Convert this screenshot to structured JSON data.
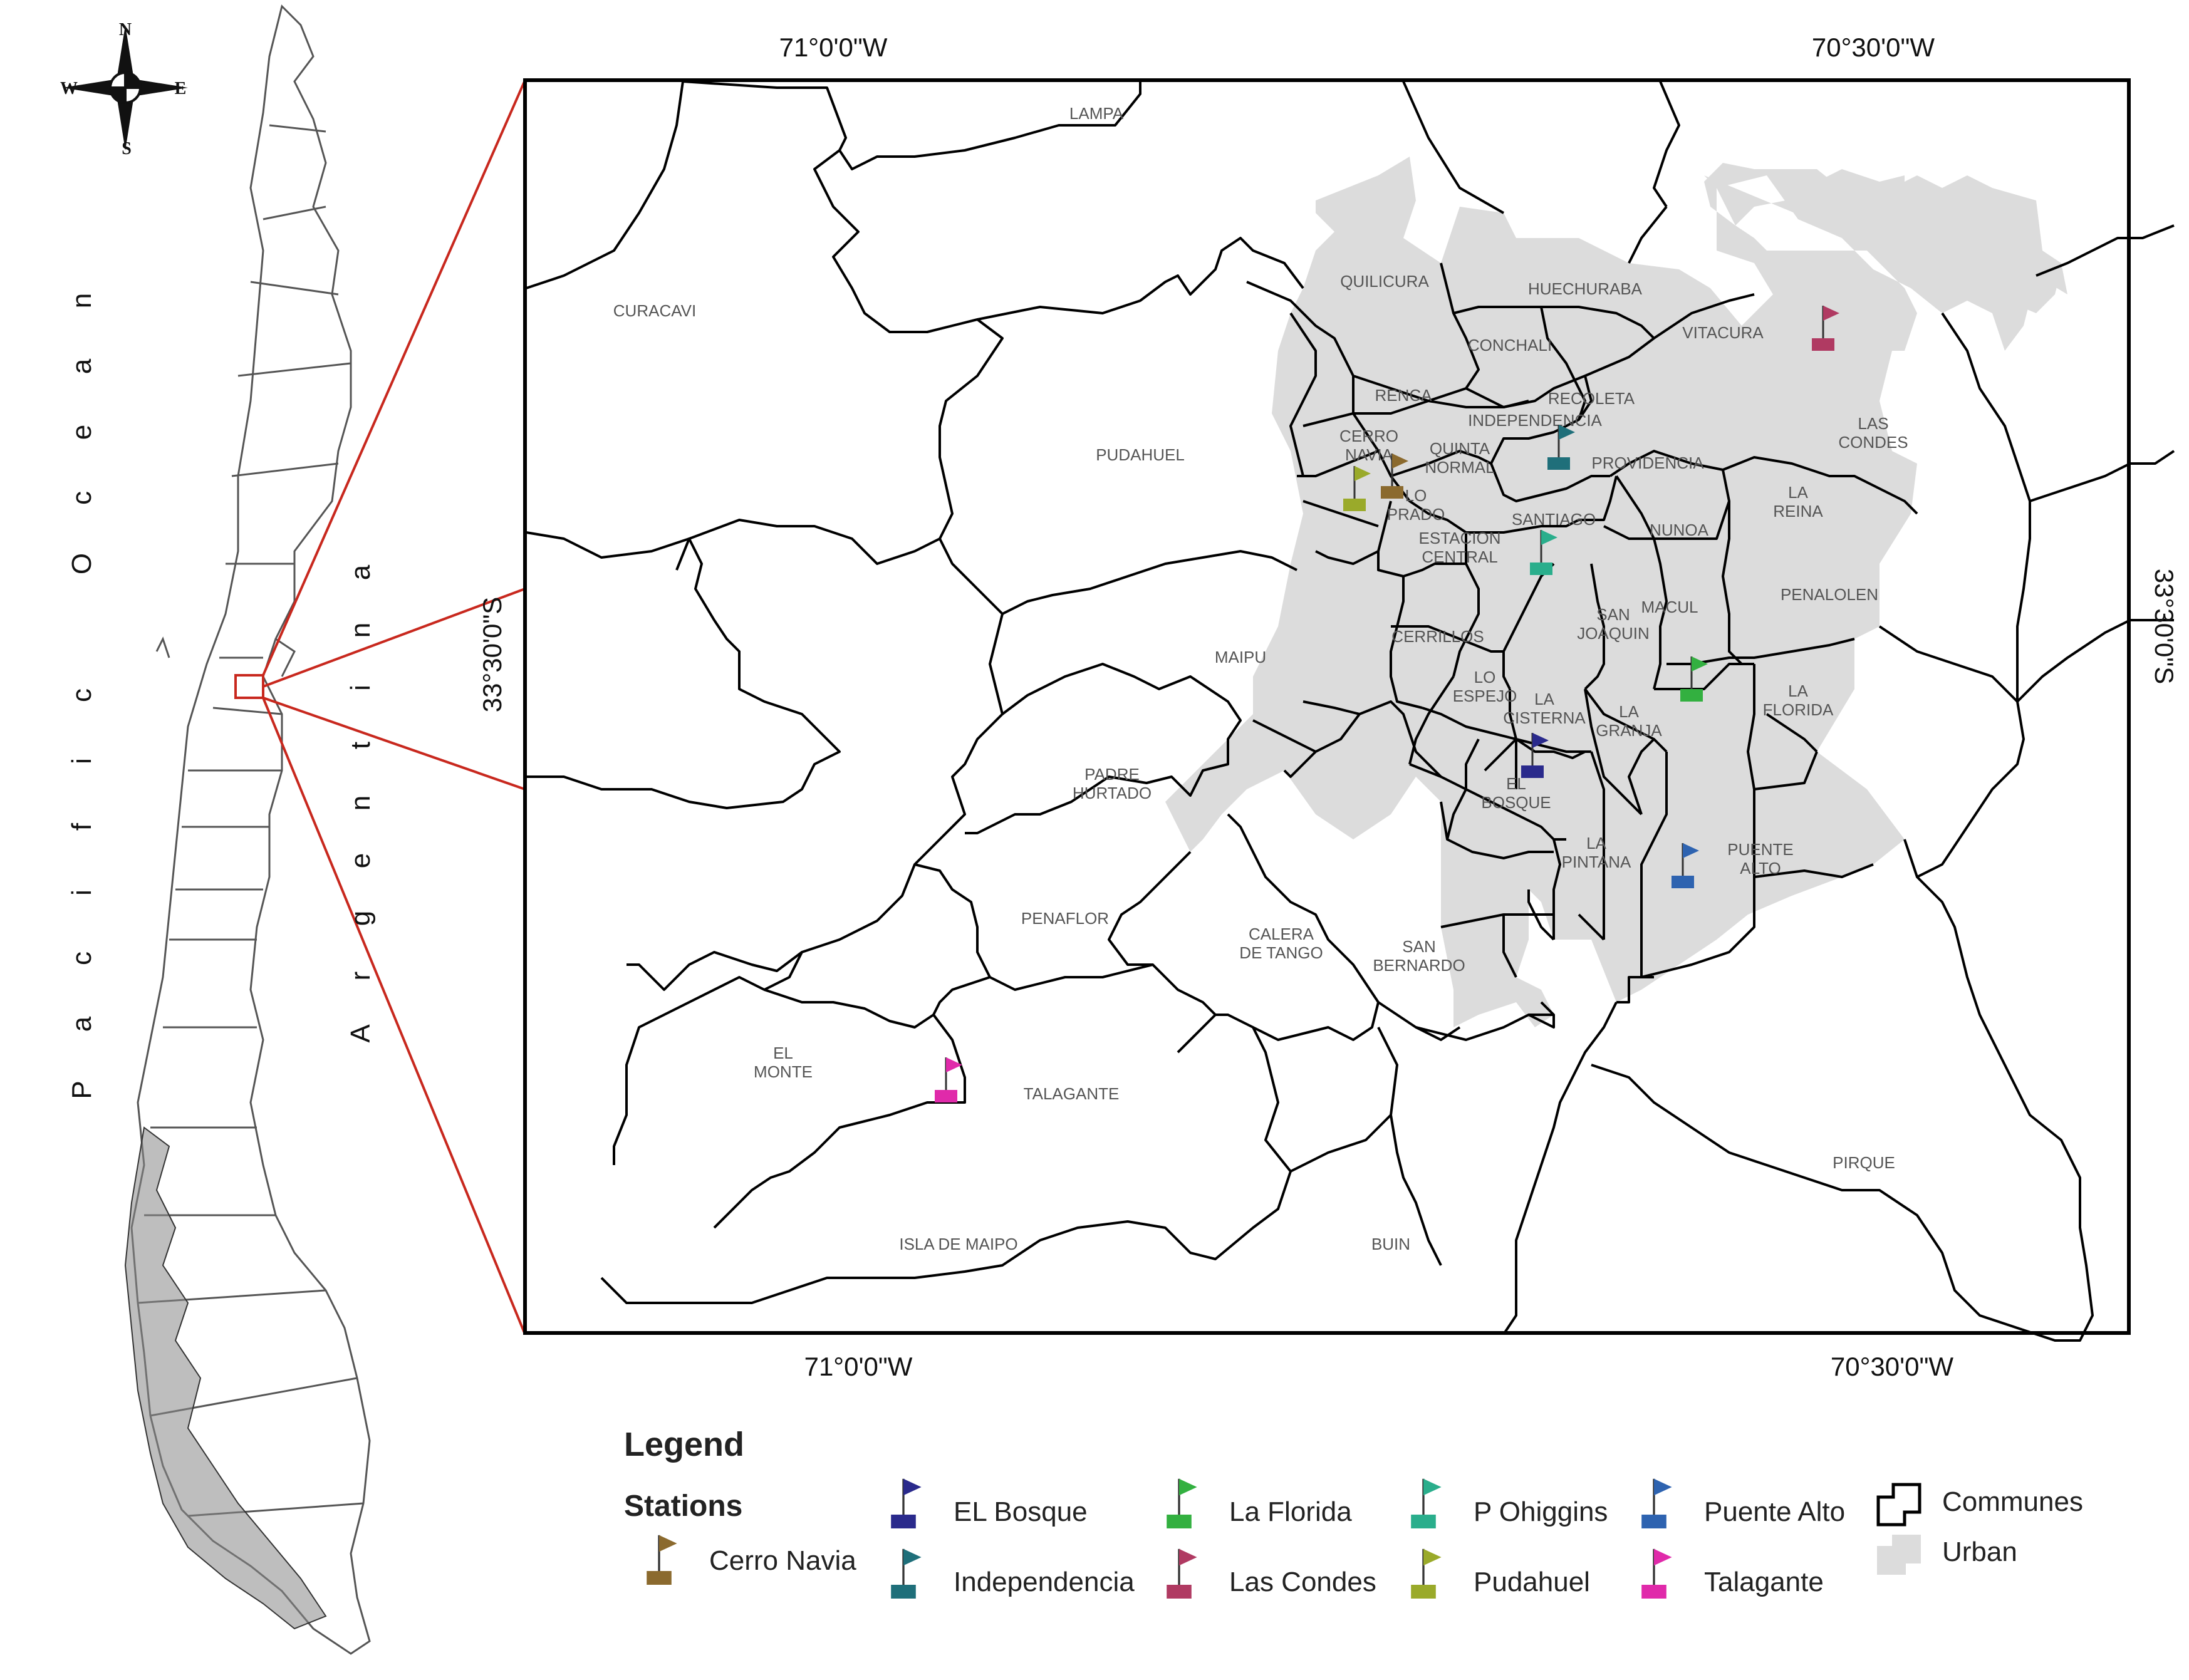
{
  "coordinates": {
    "top_left": "71°0'0\"W",
    "top_right": "70°30'0\"W",
    "bottom_left": "71°0'0\"W",
    "bottom_right": "70°30'0\"W",
    "left_lat": "33°30'0\"S",
    "right_lat": "33°30'0\"S"
  },
  "compass": {
    "n": "N",
    "s": "S",
    "e": "E",
    "w": "W"
  },
  "ocean_letters": [
    "P",
    "a",
    "c",
    "i",
    "f",
    "i",
    "c",
    " ",
    "O",
    "c",
    "e",
    "a",
    "n"
  ],
  "country_letters": [
    "A",
    "r",
    "g",
    "e",
    "n",
    "t",
    "i",
    "n",
    "a"
  ],
  "communes": [
    {
      "name": "LAMPA",
      "lines": [
        "LAMPA"
      ]
    },
    {
      "name": "CURACAVI",
      "lines": [
        "CURACAVI"
      ]
    },
    {
      "name": "QUILICURA",
      "lines": [
        "QUILICURA"
      ]
    },
    {
      "name": "HUECHURABA",
      "lines": [
        "HUECHURABA"
      ]
    },
    {
      "name": "VITACURA",
      "lines": [
        "VITACURA"
      ]
    },
    {
      "name": "CONCHALI",
      "lines": [
        "CONCHALI"
      ]
    },
    {
      "name": "RENCA",
      "lines": [
        "RENCA"
      ]
    },
    {
      "name": "RECOLETA",
      "lines": [
        "RECOLETA"
      ]
    },
    {
      "name": "INDEPENDENCIA",
      "lines": [
        "INDEPENDENCIA"
      ]
    },
    {
      "name": "LAS CONDES",
      "lines": [
        "LAS",
        "CONDES"
      ]
    },
    {
      "name": "PUDAHUEL",
      "lines": [
        "PUDAHUEL"
      ]
    },
    {
      "name": "CERRO NAVIA",
      "lines": [
        "CERRO",
        "NAVIA"
      ]
    },
    {
      "name": "QUINTA NORMAL",
      "lines": [
        "QUINTA",
        "NORMAL"
      ]
    },
    {
      "name": "PROVIDENCIA",
      "lines": [
        "PROVIDENCIA"
      ]
    },
    {
      "name": "LO PRADO",
      "lines": [
        "LO",
        "PRADO"
      ]
    },
    {
      "name": "LA REINA",
      "lines": [
        "LA",
        "REINA"
      ]
    },
    {
      "name": "SANTIAGO",
      "lines": [
        "SANTIAGO"
      ]
    },
    {
      "name": "NUNOA",
      "lines": [
        "NUNOA"
      ]
    },
    {
      "name": "ESTACION CENTRAL",
      "lines": [
        "ESTACION",
        "CENTRAL"
      ]
    },
    {
      "name": "PENALOLEN",
      "lines": [
        "PENALOLEN"
      ]
    },
    {
      "name": "MACUL",
      "lines": [
        "MACUL"
      ]
    },
    {
      "name": "SAN JOAQUIN",
      "lines": [
        "SAN",
        "JOAQUIN"
      ]
    },
    {
      "name": "CERRILLOS",
      "lines": [
        "CERRILLOS"
      ]
    },
    {
      "name": "MAIPU",
      "lines": [
        "MAIPU"
      ]
    },
    {
      "name": "LO ESPEJO",
      "lines": [
        "LO",
        "ESPEJO"
      ]
    },
    {
      "name": "LA CISTERNA",
      "lines": [
        "LA",
        "CISTERNA"
      ]
    },
    {
      "name": "LA GRANJA",
      "lines": [
        "LA",
        "GRANJA"
      ]
    },
    {
      "name": "LA FLORIDA",
      "lines": [
        "LA",
        "FLORIDA"
      ]
    },
    {
      "name": "PADRE HURTADO",
      "lines": [
        "PADRE",
        "HURTADO"
      ]
    },
    {
      "name": "EL BOSQUE",
      "lines": [
        "EL",
        "BOSQUE"
      ]
    },
    {
      "name": "LA PINTANA",
      "lines": [
        "LA",
        "PINTANA"
      ]
    },
    {
      "name": "PUENTE ALTO",
      "lines": [
        "PUENTE",
        "ALTO"
      ]
    },
    {
      "name": "PENAFLOR",
      "lines": [
        "PENAFLOR"
      ]
    },
    {
      "name": "CALERA DE TANGO",
      "lines": [
        "CALERA",
        "DE TANGO"
      ]
    },
    {
      "name": "SAN BERNARDO",
      "lines": [
        "SAN",
        "BERNARDO"
      ]
    },
    {
      "name": "EL MONTE",
      "lines": [
        "EL",
        "MONTE"
      ]
    },
    {
      "name": "TALAGANTE",
      "lines": [
        "TALAGANTE"
      ]
    },
    {
      "name": "PIRQUE",
      "lines": [
        "PIRQUE"
      ]
    },
    {
      "name": "ISLA DE MAIPO",
      "lines": [
        "ISLA DE MAIPO"
      ]
    },
    {
      "name": "BUIN",
      "lines": [
        "BUIN"
      ]
    }
  ],
  "stations": [
    {
      "name": "Cerro Navia",
      "color": "#8B6A2E"
    },
    {
      "name": "EL Bosque",
      "color": "#2A2A8C"
    },
    {
      "name": "Independencia",
      "color": "#1F6F7A"
    },
    {
      "name": "La Florida",
      "color": "#33B040"
    },
    {
      "name": "Las Condes",
      "color": "#B03A62"
    },
    {
      "name": "P Ohiggins",
      "color": "#2AAE8C"
    },
    {
      "name": "Pudahuel",
      "color": "#9AAA2A"
    },
    {
      "name": "Puente Alto",
      "color": "#2E63B0"
    },
    {
      "name": "Talagante",
      "color": "#E02AAA"
    }
  ],
  "legend": {
    "title": "Legend",
    "stations_heading": "Stations",
    "communes_label": "Communes",
    "urban_label": "Urban"
  },
  "colors": {
    "urban": "#DCDCDC",
    "inset_frame": "#C8281E",
    "boundary": "#000000"
  }
}
